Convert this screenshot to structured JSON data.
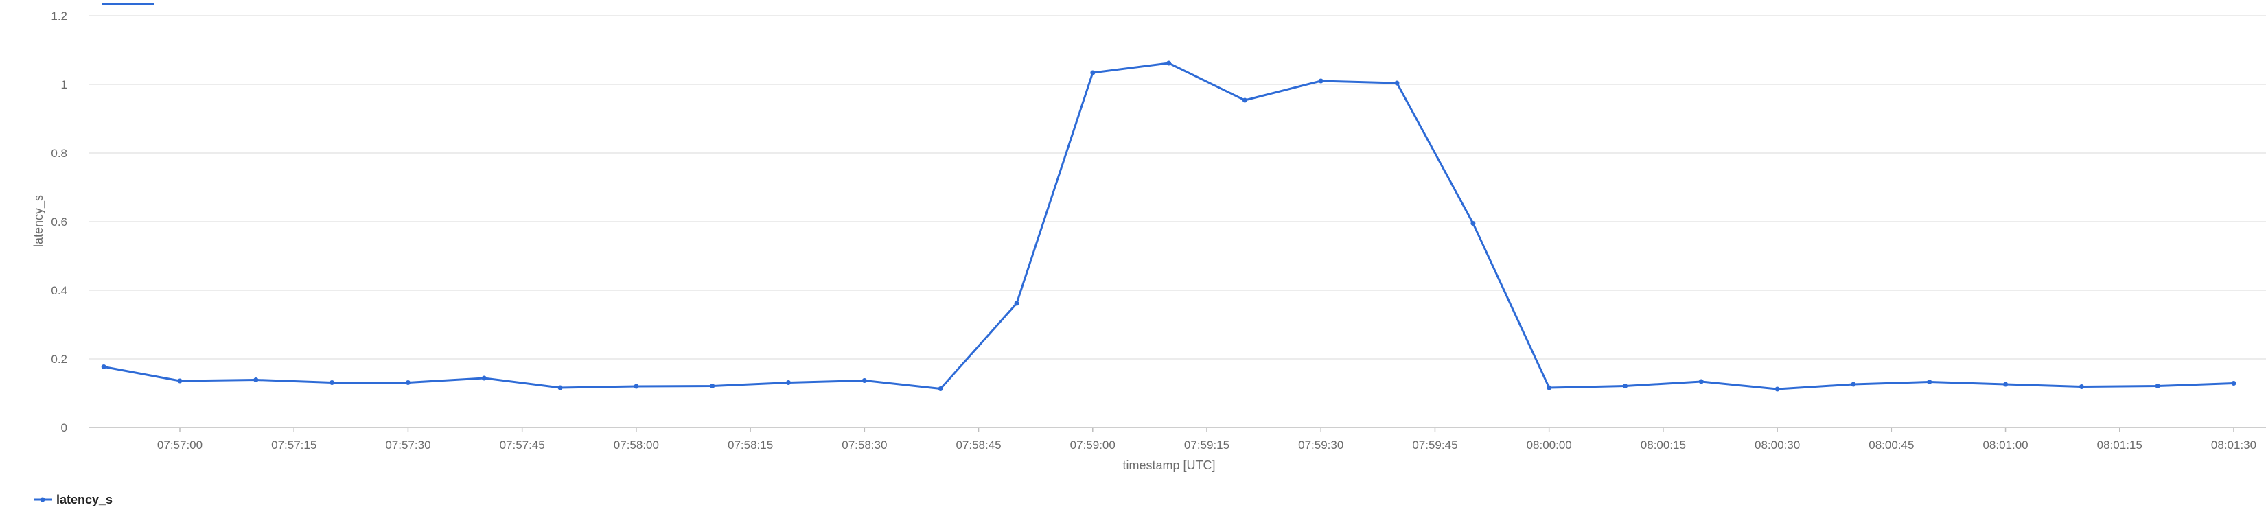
{
  "chart_data": {
    "type": "line",
    "xlabel": "timestamp [UTC]",
    "ylabel": "latency_s",
    "ylim": [
      0,
      1.2
    ],
    "y_ticks": [
      0,
      0.2,
      0.4,
      0.6,
      0.8,
      1,
      1.2
    ],
    "y_tick_labels": [
      "0",
      "0.2",
      "0.4",
      "0.6",
      "0.8",
      "1",
      "1.2"
    ],
    "x_ticks": [
      "07:57:00",
      "07:57:15",
      "07:57:30",
      "07:57:45",
      "07:58:00",
      "07:58:15",
      "07:58:30",
      "07:58:45",
      "07:59:00",
      "07:59:15",
      "07:59:30",
      "07:59:45",
      "08:00:00",
      "08:00:15",
      "08:00:30",
      "08:00:45",
      "08:01:00",
      "08:01:15",
      "08:01:30"
    ],
    "grid": true,
    "legend_position": "bottom-left",
    "x": [
      "07:56:50",
      "07:57:00",
      "07:57:10",
      "07:57:20",
      "07:57:30",
      "07:57:40",
      "07:57:50",
      "07:58:00",
      "07:58:10",
      "07:58:20",
      "07:58:30",
      "07:58:40",
      "07:58:50",
      "07:59:00",
      "07:59:10",
      "07:59:20",
      "07:59:30",
      "07:59:40",
      "07:59:50",
      "08:00:00",
      "08:00:10",
      "08:00:20",
      "08:00:30",
      "08:00:40",
      "08:00:50",
      "08:01:00",
      "08:01:10",
      "08:01:20",
      "08:01:30"
    ],
    "series": [
      {
        "name": "latency_s",
        "color": "#2e6bd6",
        "values": [
          0.177,
          0.136,
          0.139,
          0.131,
          0.131,
          0.144,
          0.116,
          0.12,
          0.121,
          0.131,
          0.137,
          0.113,
          0.362,
          1.034,
          1.062,
          0.954,
          1.01,
          1.004,
          0.595,
          0.116,
          0.121,
          0.134,
          0.112,
          0.126,
          0.133,
          0.126,
          0.119,
          0.121,
          0.129
        ]
      }
    ]
  }
}
